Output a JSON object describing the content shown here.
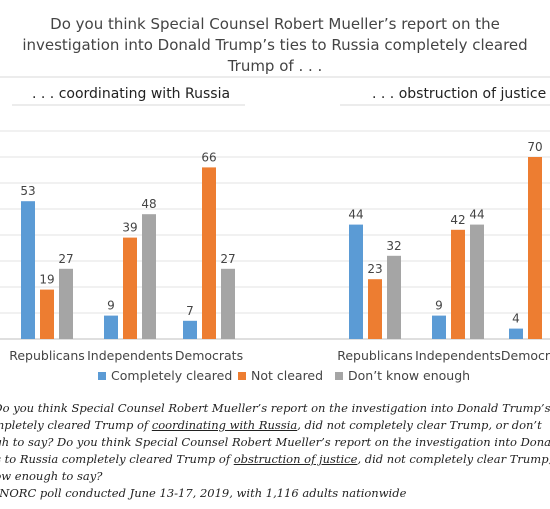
{
  "chart_data": {
    "type": "bar",
    "title": "Do you think Special Counsel Robert Mueller’s report on the investigation into Donald Trump’s ties to Russia completely cleared Trump of . . .",
    "ylim": [
      0,
      80
    ],
    "grid": true,
    "legend_placement": "bottom",
    "series": [
      {
        "name": "Completely cleared",
        "color": "#5b9bd5"
      },
      {
        "name": "Not cleared",
        "color": "#ed7d31"
      },
      {
        "name": "Don’t know enough",
        "color": "#a5a5a5"
      }
    ],
    "panels": [
      {
        "label": ". . . coordinating with Russia",
        "categories": [
          "Republicans",
          "Independents",
          "Democrats"
        ],
        "values": [
          [
            53,
            19,
            27
          ],
          [
            9,
            39,
            48
          ],
          [
            7,
            66,
            27
          ]
        ]
      },
      {
        "label": ". . . obstruction of justice",
        "categories": [
          "Republicans",
          "Independents",
          "Democrats"
        ],
        "values": [
          [
            44,
            23,
            32
          ],
          [
            9,
            42,
            44
          ],
          [
            4,
            70,
            null
          ]
        ]
      }
    ]
  },
  "notes": {
    "line1": "s: Do you think Special Counsel Robert Mueller’s report on the investigation into Donald Trump’s",
    "line2_a": "completely cleared Trump of ",
    "line2_u": "coordinating with Russia",
    "line2_b": ", did not completely clear Trump, or don’t",
    "line3": "ough to say? Do you think Special Counsel Robert Mueller’s report on the investigation into Donald",
    "line4_a": "ties to Russia completely cleared Trump of ",
    "line4_u": "obstruction of justice",
    "line4_b": ", did not completely clear Trump,",
    "line5": "know enough to say?"
  },
  "source": "AP-NORC poll conducted June 13-17, 2019, with 1,116 adults nationwide"
}
